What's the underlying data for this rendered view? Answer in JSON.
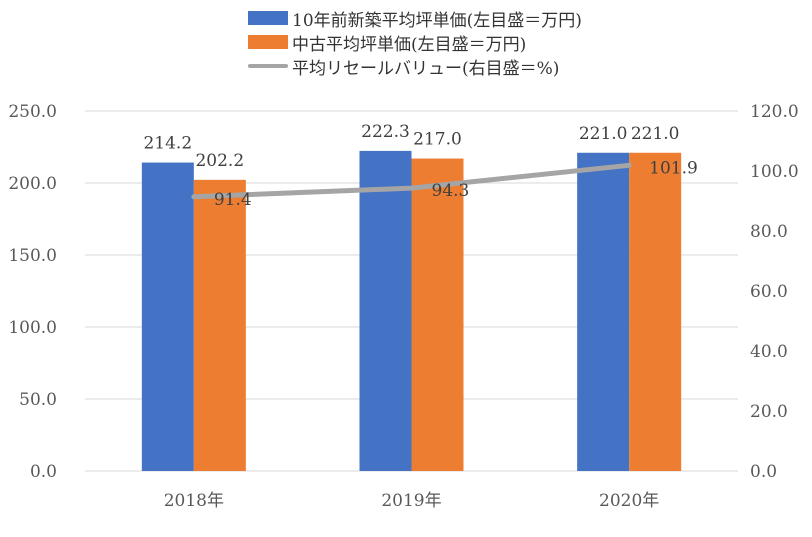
{
  "chart_data": {
    "type": "bar",
    "categories": [
      "2018年",
      "2019年",
      "2020年"
    ],
    "series": [
      {
        "name": "10年前新築平均坪単価(左目盛＝万円)",
        "type": "bar",
        "axis": "left",
        "color": "#4472C4",
        "values": [
          214.2,
          222.3,
          221.0
        ]
      },
      {
        "name": "中古平均坪単価(左目盛＝万円)",
        "type": "bar",
        "axis": "left",
        "color": "#ED7D31",
        "values": [
          202.2,
          217.0,
          221.0
        ]
      },
      {
        "name": "平均リセールバリュー(右目盛＝%)",
        "type": "line",
        "axis": "right",
        "color": "#A5A5A5",
        "values": [
          91.4,
          94.3,
          101.9
        ]
      }
    ],
    "left_axis": {
      "ylim": [
        0,
        250
      ],
      "ticks": [
        "0.0",
        "50.0",
        "100.0",
        "150.0",
        "200.0",
        "250.0"
      ]
    },
    "right_axis": {
      "ylim": [
        0,
        120
      ],
      "ticks": [
        "0.0",
        "20.0",
        "40.0",
        "60.0",
        "80.0",
        "100.0",
        "120.0"
      ]
    },
    "grid": true,
    "legend_position": "top"
  }
}
